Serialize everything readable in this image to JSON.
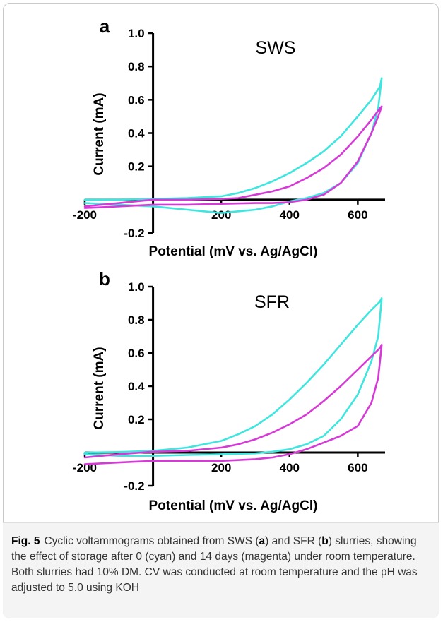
{
  "chart_data": [
    {
      "type": "line",
      "panel": "a",
      "title": "SWS",
      "xlabel": "Potential (mV vs. Ag/AgCl)",
      "ylabel": "Current (mA)",
      "xlim": [
        -200,
        680
      ],
      "ylim": [
        -0.2,
        1.0
      ],
      "xticks": [
        -200,
        200,
        400,
        600
      ],
      "yticks": [
        -0.2,
        0.2,
        0.4,
        0.6,
        0.8,
        1.0
      ],
      "xtick_labels": [
        "-200",
        "200",
        "400",
        "600"
      ],
      "ytick_labels": [
        "-0.2",
        "0.2",
        "0.4",
        "0.6",
        "0.8",
        "1.0"
      ],
      "series": [
        {
          "color": "#3ee6e0",
          "x": [
            -200,
            -100,
            0,
            100,
            200,
            250,
            300,
            350,
            400,
            450,
            500,
            550,
            600,
            640,
            665,
            670,
            660,
            640,
            600,
            550,
            500,
            450,
            400,
            350,
            300,
            250,
            200,
            100,
            0,
            -100,
            -200
          ],
          "y": [
            0.0,
            0.0,
            0.005,
            0.01,
            0.02,
            0.04,
            0.07,
            0.11,
            0.16,
            0.22,
            0.29,
            0.38,
            0.5,
            0.6,
            0.68,
            0.73,
            0.55,
            0.4,
            0.22,
            0.1,
            0.04,
            0.01,
            -0.01,
            -0.04,
            -0.06,
            -0.07,
            -0.08,
            -0.06,
            -0.04,
            -0.03,
            -0.02
          ]
        },
        {
          "color": "#d63ad6",
          "x": [
            -200,
            -100,
            0,
            100,
            200,
            250,
            300,
            350,
            400,
            450,
            500,
            550,
            600,
            640,
            665,
            670,
            660,
            640,
            600,
            550,
            500,
            450,
            400,
            350,
            300,
            200,
            100,
            0,
            -100,
            -200
          ],
          "y": [
            -0.04,
            -0.02,
            0.0,
            0.0,
            0.005,
            0.01,
            0.03,
            0.05,
            0.08,
            0.13,
            0.19,
            0.27,
            0.38,
            0.48,
            0.55,
            0.56,
            0.5,
            0.4,
            0.23,
            0.1,
            0.03,
            0.0,
            -0.015,
            -0.02,
            -0.02,
            -0.025,
            -0.03,
            -0.03,
            -0.04,
            -0.05
          ]
        }
      ]
    },
    {
      "type": "line",
      "panel": "b",
      "title": "SFR",
      "xlabel": "Potential (mV vs. Ag/AgCl)",
      "ylabel": "Current (mA)",
      "xlim": [
        -200,
        680
      ],
      "ylim": [
        -0.2,
        1.0
      ],
      "xticks": [
        -200,
        200,
        400,
        600
      ],
      "yticks": [
        -0.2,
        0.2,
        0.4,
        0.6,
        0.8,
        1.0
      ],
      "xtick_labels": [
        "-200",
        "200",
        "400",
        "600"
      ],
      "ytick_labels": [
        "-0.2",
        "0.2",
        "0.4",
        "0.6",
        "0.8",
        "1.0"
      ],
      "series": [
        {
          "color": "#3ee6e0",
          "x": [
            -200,
            -100,
            0,
            100,
            200,
            250,
            300,
            350,
            400,
            450,
            500,
            550,
            600,
            640,
            665,
            670,
            660,
            640,
            600,
            550,
            500,
            450,
            400,
            350,
            300,
            200,
            100,
            0,
            -100,
            -200
          ],
          "y": [
            0.0,
            0.003,
            0.01,
            0.03,
            0.07,
            0.11,
            0.16,
            0.23,
            0.32,
            0.42,
            0.53,
            0.65,
            0.77,
            0.86,
            0.91,
            0.93,
            0.7,
            0.55,
            0.35,
            0.2,
            0.1,
            0.05,
            0.02,
            0.005,
            -0.005,
            -0.01,
            -0.015,
            -0.02,
            -0.02,
            -0.01
          ]
        },
        {
          "color": "#d63ad6",
          "x": [
            -200,
            -100,
            0,
            100,
            200,
            250,
            300,
            350,
            400,
            450,
            500,
            550,
            600,
            640,
            665,
            670,
            660,
            640,
            600,
            550,
            500,
            450,
            400,
            350,
            300,
            200,
            100,
            0,
            -100,
            -200
          ],
          "y": [
            -0.03,
            -0.01,
            0.005,
            0.01,
            0.03,
            0.05,
            0.08,
            0.12,
            0.17,
            0.23,
            0.31,
            0.4,
            0.5,
            0.58,
            0.63,
            0.65,
            0.45,
            0.3,
            0.16,
            0.1,
            0.06,
            0.02,
            -0.01,
            -0.03,
            -0.04,
            -0.05,
            -0.05,
            -0.05,
            -0.06,
            -0.07
          ]
        }
      ]
    }
  ],
  "caption": {
    "fig_label": "Fig. 5",
    "seg1": "Cyclic voltammograms obtained from SWS (",
    "bold_a": "a",
    "seg2": ") and SFR (",
    "bold_b": "b",
    "seg3": ") slurries, showing the effect of storage after 0 (cyan) and 14 days (magenta) under room temperature. Both slurries had 10% DM. CV was conducted at room temperature and the pH was adjusted to 5.0 using KOH"
  }
}
